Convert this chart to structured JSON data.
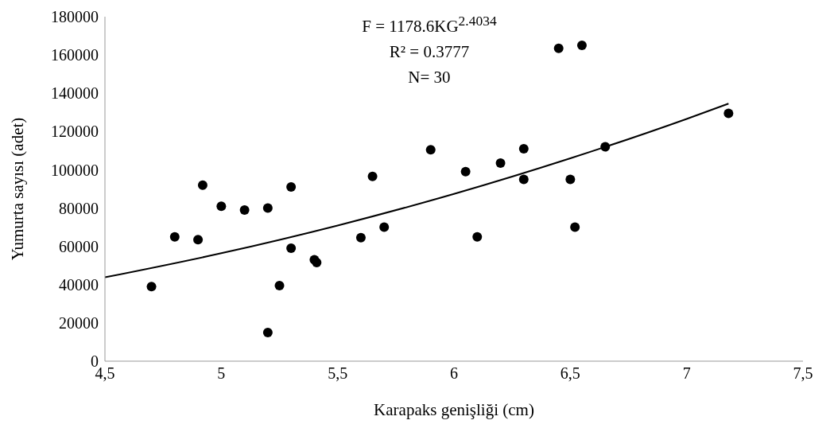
{
  "chart_data": {
    "type": "scatter",
    "xlabel": "Karapaks genişliği (cm)",
    "ylabel": "Yumurta sayısı (adet)",
    "annotations": [
      "F = 1178.6KG$^{2.4034}$",
      "R² = 0.3777",
      "N= 30"
    ],
    "marker": "circle",
    "xlim": [
      4.5,
      7.5
    ],
    "xticks": [
      {
        "value": 4.5,
        "label": "4,5"
      },
      5,
      {
        "value": 5.5,
        "label": "5,5"
      },
      6,
      {
        "value": 6.5,
        "label": "6,5"
      },
      7,
      {
        "value": 7.5,
        "label": "7,5"
      }
    ],
    "ylim": [
      0,
      180000
    ],
    "yticks": [
      0,
      20000,
      40000,
      60000,
      80000,
      100000,
      120000,
      140000,
      160000,
      180000
    ],
    "series": [
      {
        "color": "#000000",
        "x": [
          4.7,
          4.8,
          4.9,
          4.92,
          5.0,
          5.1,
          5.2,
          5.2,
          5.25,
          5.3,
          5.3,
          5.4,
          5.41,
          5.6,
          5.65,
          5.7,
          5.9,
          6.05,
          6.1,
          6.2,
          6.3,
          6.3,
          6.45,
          6.5,
          6.52,
          6.55,
          6.65,
          7.18
        ],
        "values": [
          39000,
          65000,
          63500,
          92000,
          81000,
          79000,
          80000,
          15000,
          39500,
          91000,
          59000,
          53000,
          51500,
          64500,
          96500,
          70000,
          110500,
          99000,
          65000,
          103500,
          111000,
          95000,
          163500,
          95000,
          70000,
          165000,
          112000,
          129500
        ]
      },
      {
        "type": "line",
        "color": "#000000",
        "marker": "none",
        "x": [
          4.5,
          5,
          5.5,
          6,
          6.5,
          7,
          7.18
        ],
        "values": [
          43800,
          56400,
          70900,
          87400,
          106000,
          126600,
          134600
        ]
      }
    ]
  }
}
